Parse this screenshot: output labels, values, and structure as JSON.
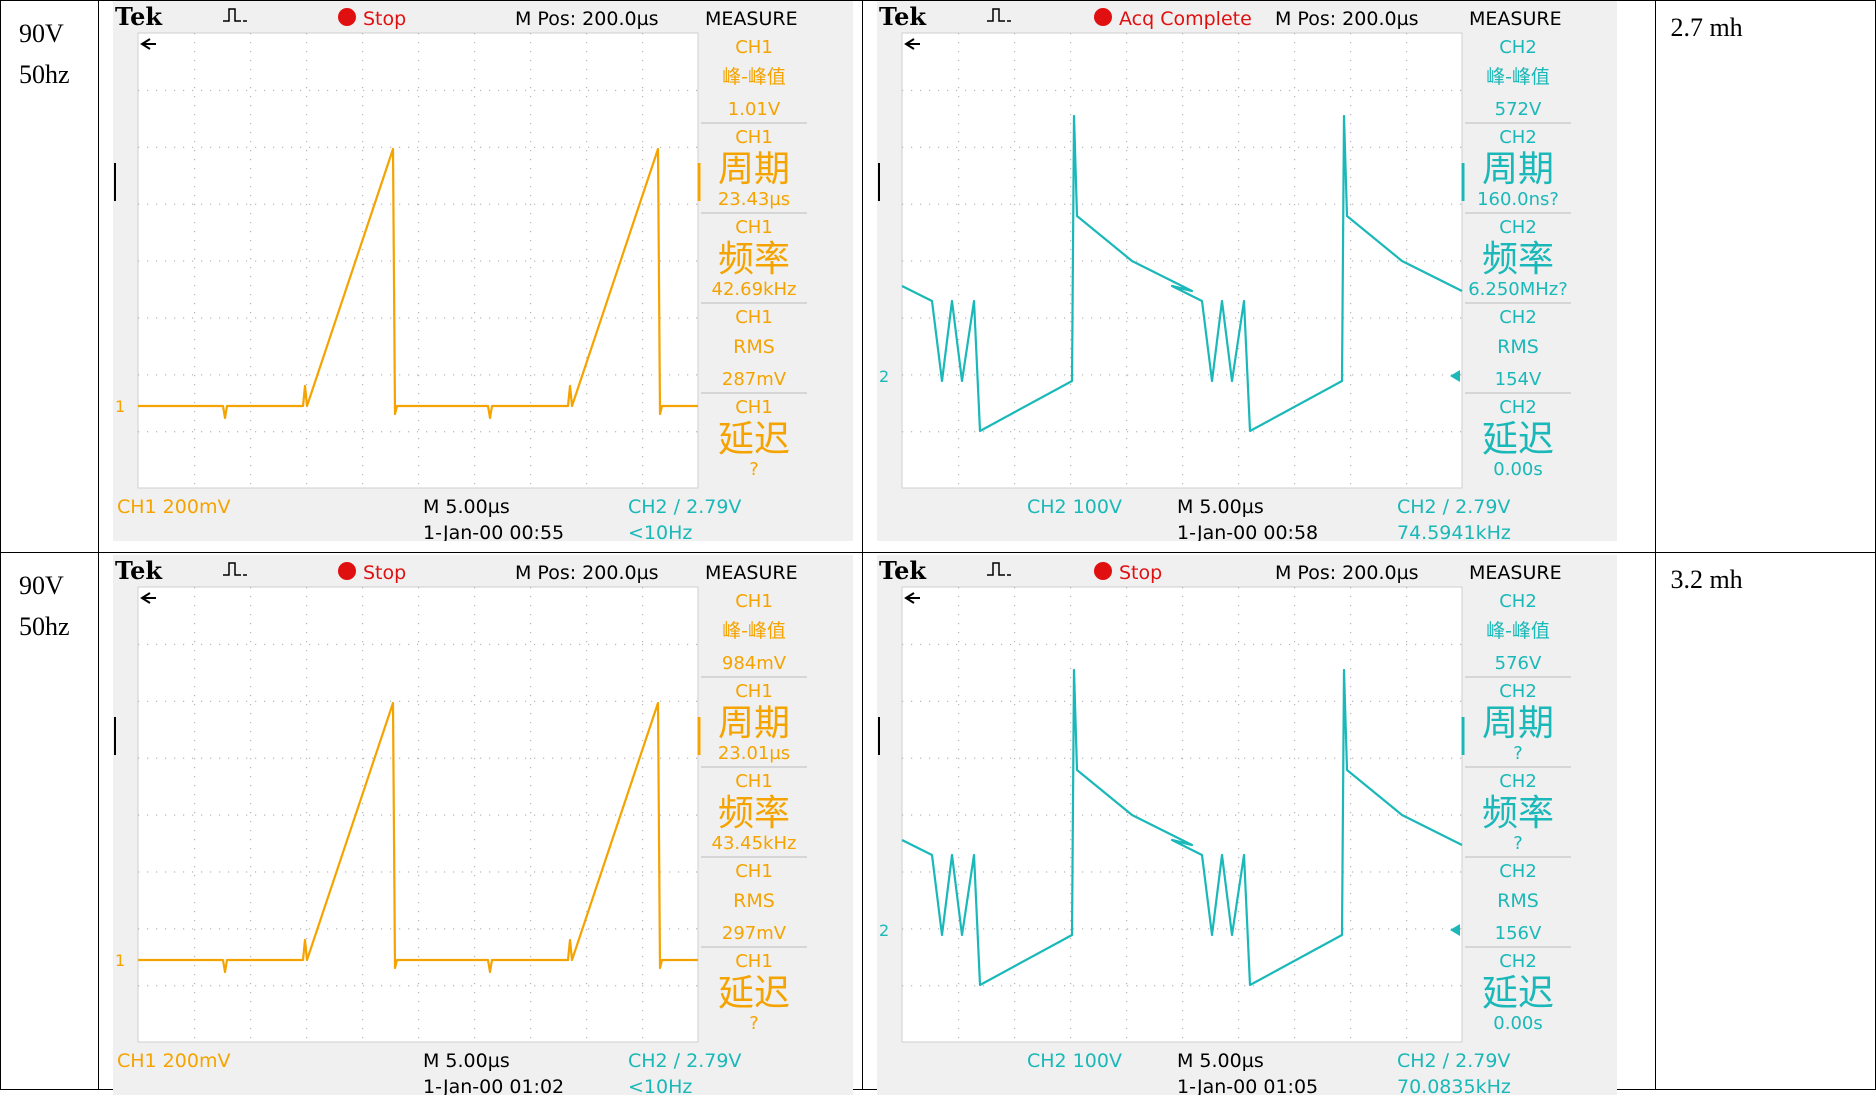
{
  "rows": [
    {
      "label_line1": "90V",
      "label_line2": "50hz",
      "note": "2.7 mh",
      "left": {
        "brand": "Tek",
        "status": "Stop",
        "mpos": "M Pos: 200.0µs",
        "measure": "MEASURE",
        "marker": "1",
        "measurements": [
          {
            "ch": "CH1",
            "name": "峰-峰值",
            "value": "1.01V"
          },
          {
            "ch": "CH1",
            "name": "周期",
            "value": "23.43µs"
          },
          {
            "ch": "CH1",
            "name": "频率",
            "value": "42.69kHz"
          },
          {
            "ch": "CH1",
            "name": "RMS",
            "value": "287mV"
          },
          {
            "ch": "CH1",
            "name": "延迟",
            "value": "?"
          }
        ],
        "bottom_scale": "CH1  200mV",
        "bottom_time": "M 5.00µs",
        "bottom_date": "1-Jan-00 00:55",
        "bottom_trig": "CH2 ∕ 2.79V",
        "bottom_freq": "<10Hz"
      },
      "right": {
        "brand": "Tek",
        "status": "Acq Complete",
        "mpos": "M Pos: 200.0µs",
        "measure": "MEASURE",
        "marker": "2",
        "measurements": [
          {
            "ch": "CH2",
            "name": "峰-峰值",
            "value": "572V"
          },
          {
            "ch": "CH2",
            "name": "周期",
            "value": "160.0ns?"
          },
          {
            "ch": "CH2",
            "name": "频率",
            "value": "6.250MHz?"
          },
          {
            "ch": "CH2",
            "name": "RMS",
            "value": "154V"
          },
          {
            "ch": "CH2",
            "name": "延迟",
            "value": "0.00s"
          }
        ],
        "bottom_scale": "CH2  100V",
        "bottom_time": "M 5.00µs",
        "bottom_date": "1-Jan-00 00:58",
        "bottom_trig": "CH2 ∕ 2.79V",
        "bottom_freq": "74.5941kHz"
      }
    },
    {
      "label_line1": "90V",
      "label_line2": "50hz",
      "note": "3.2 mh",
      "left": {
        "brand": "Tek",
        "status": "Stop",
        "mpos": "M Pos: 200.0µs",
        "measure": "MEASURE",
        "marker": "1",
        "measurements": [
          {
            "ch": "CH1",
            "name": "峰-峰值",
            "value": "984mV"
          },
          {
            "ch": "CH1",
            "name": "周期",
            "value": "23.01µs"
          },
          {
            "ch": "CH1",
            "name": "频率",
            "value": "43.45kHz"
          },
          {
            "ch": "CH1",
            "name": "RMS",
            "value": "297mV"
          },
          {
            "ch": "CH1",
            "name": "延迟",
            "value": "?"
          }
        ],
        "bottom_scale": "CH1  200mV",
        "bottom_time": "M 5.00µs",
        "bottom_date": "1-Jan-00 01:02",
        "bottom_trig": "CH2 ∕ 2.79V",
        "bottom_freq": "<10Hz"
      },
      "right": {
        "brand": "Tek",
        "status": "Stop",
        "mpos": "M Pos: 200.0µs",
        "measure": "MEASURE",
        "marker": "2",
        "measurements": [
          {
            "ch": "CH2",
            "name": "峰-峰值",
            "value": "576V"
          },
          {
            "ch": "CH2",
            "name": "周期",
            "value": "?"
          },
          {
            "ch": "CH2",
            "name": "频率",
            "value": "?"
          },
          {
            "ch": "CH2",
            "name": "RMS",
            "value": "156V"
          },
          {
            "ch": "CH2",
            "name": "延迟",
            "value": "0.00s"
          }
        ],
        "bottom_scale": "CH2  100V",
        "bottom_time": "M 5.00µs",
        "bottom_date": "1-Jan-00 01:05",
        "bottom_trig": "CH2 ∕ 2.79V",
        "bottom_freq": "70.0835kHz"
      }
    }
  ],
  "colors": {
    "ch1": "#f5a300",
    "ch2": "#1ab8b8",
    "stop_dot": "#e01010",
    "screen_bg": "#ffffff",
    "panel_bg": "#e8e8e8"
  }
}
